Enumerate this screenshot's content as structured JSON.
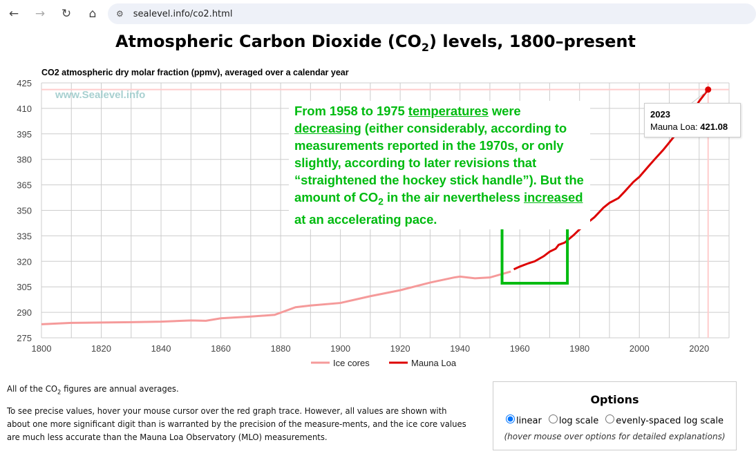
{
  "browser": {
    "url": "sealevel.info/co2.html",
    "back_icon": "←",
    "forward_icon": "→",
    "reload_icon": "↻",
    "home_icon": "⌂"
  },
  "page": {
    "title_pre": "Atmospheric Carbon Dioxide (CO",
    "title_sub": "2",
    "title_post": ") levels, 1800–present"
  },
  "annotation": {
    "t1": "From 1958 to 1975 ",
    "u1": "temperatures",
    "t2": " were ",
    "u2": "decreasing",
    "t3": " (either considerably, according to measurements reported in the 1970s, or only slightly, according to later revisions that “straightened the hockey stick handle”).  But the amount of CO",
    "sub": "2",
    "t4": " in the air nevertheless ",
    "u3": "increased",
    "t5": " at an accelerating pace."
  },
  "tooltip": {
    "year": "2023",
    "label": "Mauna Loa: ",
    "value": "421.08"
  },
  "chart_data": {
    "type": "line",
    "title": "CO2 atmospheric dry molar fraction (ppmv), averaged over a calendar year",
    "watermark": "www.Sealevel.info",
    "xlim": [
      1800,
      2030
    ],
    "ylim": [
      275,
      425
    ],
    "xticks": [
      "1800",
      "1820",
      "1840",
      "1860",
      "1880",
      "1900",
      "1920",
      "1940",
      "1960",
      "1980",
      "2000",
      "2020"
    ],
    "yticks": [
      "425",
      "410",
      "395",
      "380",
      "365",
      "350",
      "335",
      "320",
      "305",
      "290",
      "275"
    ],
    "grid": true,
    "legend": "bottom",
    "highlight_range": [
      1958,
      1975
    ],
    "series": [
      {
        "name": "Ice cores",
        "color": "#f59a9a",
        "x": [
          1800,
          1810,
          1820,
          1830,
          1840,
          1850,
          1855,
          1860,
          1870,
          1878,
          1885,
          1890,
          1900,
          1910,
          1920,
          1930,
          1938,
          1940,
          1945,
          1950,
          1957
        ],
        "y": [
          283,
          283.8,
          284,
          284.2,
          284.5,
          285.2,
          285,
          286.5,
          287.5,
          288.5,
          293,
          294,
          295.5,
          299.5,
          303,
          307.5,
          310.5,
          311,
          310,
          310.5,
          314
        ]
      },
      {
        "name": "Mauna Loa",
        "color": "#dd0000",
        "x": [
          1958,
          1960,
          1963,
          1965,
          1968,
          1970,
          1972,
          1973,
          1975,
          1978,
          1980,
          1983,
          1985,
          1988,
          1990,
          1993,
          1995,
          1998,
          2000,
          2003,
          2005,
          2008,
          2010,
          2013,
          2015,
          2018,
          2020,
          2023
        ],
        "y": [
          315.3,
          316.9,
          318.9,
          320,
          323,
          325.7,
          327.4,
          329.7,
          331,
          335.4,
          338.8,
          343.2,
          346,
          351.6,
          354.4,
          357.2,
          360.9,
          366.7,
          369.7,
          375.8,
          379.8,
          385.6,
          389.9,
          396.5,
          401,
          408.7,
          414.2,
          421.08
        ]
      }
    ]
  },
  "notes": {
    "p1_pre": "All of the CO",
    "p1_sub": "2",
    "p1_post": " figures are annual averages.",
    "p2": "To see precise values, hover your mouse cursor over the red graph trace. However, all values are shown with about one more significant digit than is warranted by the precision of the measure-ments, and the ice core values are much less accurate than the Mauna Loa Observatory (MLO) measurements."
  },
  "options": {
    "title": "Options",
    "opt1": "linear",
    "opt2": "log scale",
    "opt3": "evenly-spaced log scale",
    "hint": "(hover mouse over options for detailed explanations)"
  }
}
